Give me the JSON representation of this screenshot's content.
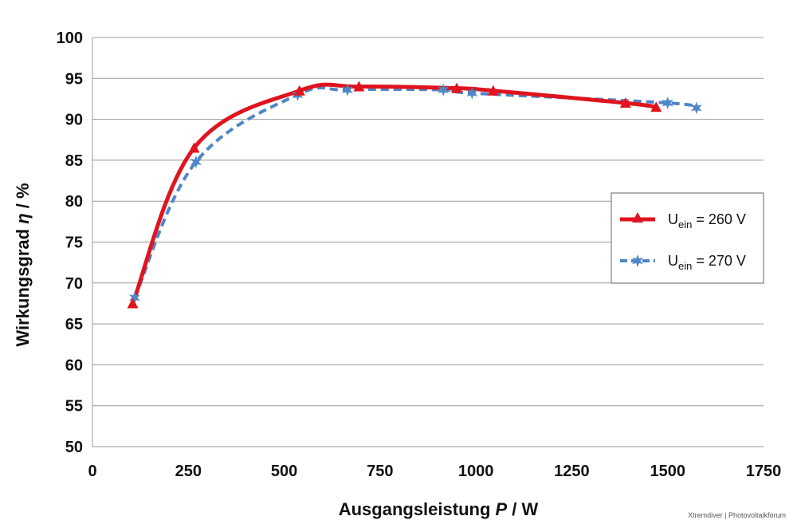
{
  "chart_data": {
    "type": "line",
    "title": "",
    "xlabel_main": "Ausgangsleistung ",
    "xlabel_var": "P",
    "xlabel_unit": " / W",
    "ylabel_main": "Wirkungsgrad  ",
    "ylabel_var": "η",
    "ylabel_unit": " / %",
    "xlim": [
      0,
      1750
    ],
    "ylim": [
      50,
      100
    ],
    "xticks": [
      0,
      250,
      500,
      750,
      1000,
      1250,
      1500,
      1750
    ],
    "yticks": [
      50,
      55,
      60,
      65,
      70,
      75,
      80,
      85,
      90,
      95,
      100
    ],
    "grid": "horizontal",
    "legend_position": "right",
    "series": [
      {
        "name": "Uein = 260 V",
        "label_main": "U",
        "label_sub": "ein",
        "label_rest": " = 260 V",
        "color": "#e0141e",
        "style": "solid",
        "marker": "triangle",
        "x": [
          105,
          265,
          540,
          695,
          950,
          1045,
          1390,
          1470
        ],
        "y": [
          67.5,
          86.5,
          93.5,
          94.0,
          93.8,
          93.5,
          92.0,
          91.5
        ]
      },
      {
        "name": "Uein = 270 V",
        "label_main": "U",
        "label_sub": "ein",
        "label_rest": " = 270 V",
        "color": "#4f86c6",
        "style": "dashed",
        "marker": "star",
        "x": [
          110,
          270,
          535,
          665,
          915,
          990,
          1500,
          1575
        ],
        "y": [
          68.2,
          84.8,
          93.0,
          93.6,
          93.6,
          93.2,
          92.0,
          91.4
        ]
      }
    ]
  },
  "watermark": "Xtremdiver | Photovoltaikforum"
}
